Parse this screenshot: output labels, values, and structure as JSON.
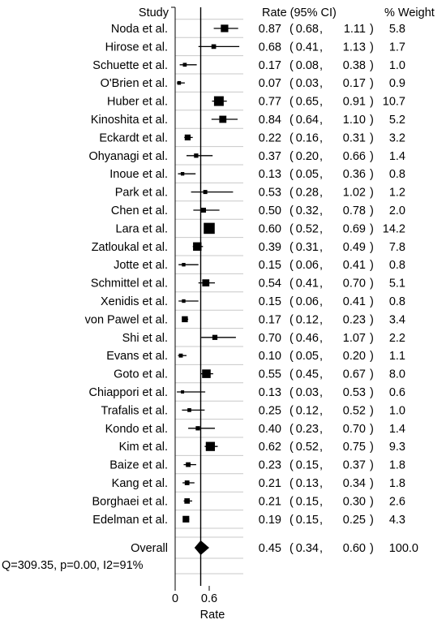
{
  "chart_data": {
    "type": "forest",
    "headers": {
      "study": "Study",
      "rate_ci": "Rate (95% CI)",
      "weight": "% Weight"
    },
    "xlabel": "Rate",
    "x_ticks": [
      "0",
      "0.6"
    ],
    "reference_line": 0,
    "overall_line": 0.45,
    "studies": [
      {
        "study": "Noda et al.",
        "rate": 0.87,
        "ci_low": 0.68,
        "ci_high": 1.11,
        "rate_label": "0.87",
        "low_label": "0.68",
        "high_label": "1.11",
        "weight": 5.8,
        "weight_label": "5.8"
      },
      {
        "study": "Hirose et al.",
        "rate": 0.68,
        "ci_low": 0.41,
        "ci_high": 1.13,
        "rate_label": "0.68",
        "low_label": "0.41",
        "high_label": "1.13",
        "weight": 1.7,
        "weight_label": "1.7"
      },
      {
        "study": "Schuette et al.",
        "rate": 0.17,
        "ci_low": 0.08,
        "ci_high": 0.38,
        "rate_label": "0.17",
        "low_label": "0.08",
        "high_label": "0.38",
        "weight": 1.0,
        "weight_label": "1.0"
      },
      {
        "study": "O'Brien et al.",
        "rate": 0.07,
        "ci_low": 0.03,
        "ci_high": 0.17,
        "rate_label": "0.07",
        "low_label": "0.03",
        "high_label": "0.17",
        "weight": 0.9,
        "weight_label": "0.9"
      },
      {
        "study": "Huber et al.",
        "rate": 0.77,
        "ci_low": 0.65,
        "ci_high": 0.91,
        "rate_label": "0.77",
        "low_label": "0.65",
        "high_label": "0.91",
        "weight": 10.7,
        "weight_label": "10.7"
      },
      {
        "study": "Kinoshita et al.",
        "rate": 0.84,
        "ci_low": 0.64,
        "ci_high": 1.1,
        "rate_label": "0.84",
        "low_label": "0.64",
        "high_label": "1.10",
        "weight": 5.2,
        "weight_label": "5.2"
      },
      {
        "study": "Eckardt et al.",
        "rate": 0.22,
        "ci_low": 0.16,
        "ci_high": 0.31,
        "rate_label": "0.22",
        "low_label": "0.16",
        "high_label": "0.31",
        "weight": 3.2,
        "weight_label": "3.2"
      },
      {
        "study": "Ohyanagi et al.",
        "rate": 0.37,
        "ci_low": 0.2,
        "ci_high": 0.66,
        "rate_label": "0.37",
        "low_label": "0.20",
        "high_label": "0.66",
        "weight": 1.4,
        "weight_label": "1.4"
      },
      {
        "study": "Inoue et al.",
        "rate": 0.13,
        "ci_low": 0.05,
        "ci_high": 0.36,
        "rate_label": "0.13",
        "low_label": "0.05",
        "high_label": "0.36",
        "weight": 0.8,
        "weight_label": "0.8"
      },
      {
        "study": "Park et al.",
        "rate": 0.53,
        "ci_low": 0.28,
        "ci_high": 1.02,
        "rate_label": "0.53",
        "low_label": "0.28",
        "high_label": "1.02",
        "weight": 1.2,
        "weight_label": "1.2"
      },
      {
        "study": "Chen et al.",
        "rate": 0.5,
        "ci_low": 0.32,
        "ci_high": 0.78,
        "rate_label": "0.50",
        "low_label": "0.32",
        "high_label": "0.78",
        "weight": 2.0,
        "weight_label": "2.0"
      },
      {
        "study": "Lara et al.",
        "rate": 0.6,
        "ci_low": 0.52,
        "ci_high": 0.69,
        "rate_label": "0.60",
        "low_label": "0.52",
        "high_label": "0.69",
        "weight": 14.2,
        "weight_label": "14.2"
      },
      {
        "study": "Zatloukal et al.",
        "rate": 0.39,
        "ci_low": 0.31,
        "ci_high": 0.49,
        "rate_label": "0.39",
        "low_label": "0.31",
        "high_label": "0.49",
        "weight": 7.8,
        "weight_label": "7.8"
      },
      {
        "study": "Jotte et al.",
        "rate": 0.15,
        "ci_low": 0.06,
        "ci_high": 0.41,
        "rate_label": "0.15",
        "low_label": "0.06",
        "high_label": "0.41",
        "weight": 0.8,
        "weight_label": "0.8"
      },
      {
        "study": "Schmittel et al.",
        "rate": 0.54,
        "ci_low": 0.41,
        "ci_high": 0.7,
        "rate_label": "0.54",
        "low_label": "0.41",
        "high_label": "0.70",
        "weight": 5.1,
        "weight_label": "5.1"
      },
      {
        "study": "Xenidis et al.",
        "rate": 0.15,
        "ci_low": 0.06,
        "ci_high": 0.41,
        "rate_label": "0.15",
        "low_label": "0.06",
        "high_label": "0.41",
        "weight": 0.8,
        "weight_label": "0.8"
      },
      {
        "study": "von Pawel et al.",
        "rate": 0.17,
        "ci_low": 0.12,
        "ci_high": 0.23,
        "rate_label": "0.17",
        "low_label": "0.12",
        "high_label": "0.23",
        "weight": 3.4,
        "weight_label": "3.4"
      },
      {
        "study": "Shi et al.",
        "rate": 0.7,
        "ci_low": 0.46,
        "ci_high": 1.07,
        "rate_label": "0.70",
        "low_label": "0.46",
        "high_label": "1.07",
        "weight": 2.2,
        "weight_label": "2.2"
      },
      {
        "study": "Evans et al.",
        "rate": 0.1,
        "ci_low": 0.05,
        "ci_high": 0.2,
        "rate_label": "0.10",
        "low_label": "0.05",
        "high_label": "0.20",
        "weight": 1.1,
        "weight_label": "1.1"
      },
      {
        "study": "Goto et al.",
        "rate": 0.55,
        "ci_low": 0.45,
        "ci_high": 0.67,
        "rate_label": "0.55",
        "low_label": "0.45",
        "high_label": "0.67",
        "weight": 8.0,
        "weight_label": "8.0"
      },
      {
        "study": "Chiappori et al.",
        "rate": 0.13,
        "ci_low": 0.03,
        "ci_high": 0.53,
        "rate_label": "0.13",
        "low_label": "0.03",
        "high_label": "0.53",
        "weight": 0.6,
        "weight_label": "0.6"
      },
      {
        "study": "Trafalis et al.",
        "rate": 0.25,
        "ci_low": 0.12,
        "ci_high": 0.52,
        "rate_label": "0.25",
        "low_label": "0.12",
        "high_label": "0.52",
        "weight": 1.0,
        "weight_label": "1.0"
      },
      {
        "study": "Kondo et al.",
        "rate": 0.4,
        "ci_low": 0.23,
        "ci_high": 0.7,
        "rate_label": "0.40",
        "low_label": "0.23",
        "high_label": "0.70",
        "weight": 1.4,
        "weight_label": "1.4"
      },
      {
        "study": "Kim et al.",
        "rate": 0.62,
        "ci_low": 0.52,
        "ci_high": 0.75,
        "rate_label": "0.62",
        "low_label": "0.52",
        "high_label": "0.75",
        "weight": 9.3,
        "weight_label": "9.3"
      },
      {
        "study": "Baize et al.",
        "rate": 0.23,
        "ci_low": 0.15,
        "ci_high": 0.37,
        "rate_label": "0.23",
        "low_label": "0.15",
        "high_label": "0.37",
        "weight": 1.8,
        "weight_label": "1.8"
      },
      {
        "study": "Kang et al.",
        "rate": 0.21,
        "ci_low": 0.13,
        "ci_high": 0.34,
        "rate_label": "0.21",
        "low_label": "0.13",
        "high_label": "0.34",
        "weight": 1.8,
        "weight_label": "1.8"
      },
      {
        "study": "Borghaei et al.",
        "rate": 0.21,
        "ci_low": 0.15,
        "ci_high": 0.3,
        "rate_label": "0.21",
        "low_label": "0.15",
        "high_label": "0.30",
        "weight": 2.6,
        "weight_label": "2.6"
      },
      {
        "study": "Edelman et al.",
        "rate": 0.19,
        "ci_low": 0.15,
        "ci_high": 0.25,
        "rate_label": "0.19",
        "low_label": "0.15",
        "high_label": "0.25",
        "weight": 4.3,
        "weight_label": "4.3"
      }
    ],
    "overall": {
      "label": "Overall",
      "rate": 0.45,
      "ci_low": 0.34,
      "ci_high": 0.6,
      "rate_label": "0.45",
      "low_label": "0.34",
      "high_label": "0.60",
      "weight": 100.0,
      "weight_label": "100.0"
    },
    "heterogeneity": "Q=309.35, p=0.00, I2=91%",
    "colors": {
      "ink": "#000000",
      "row_line": "#c8c8c8",
      "background": "#ffffff"
    }
  }
}
